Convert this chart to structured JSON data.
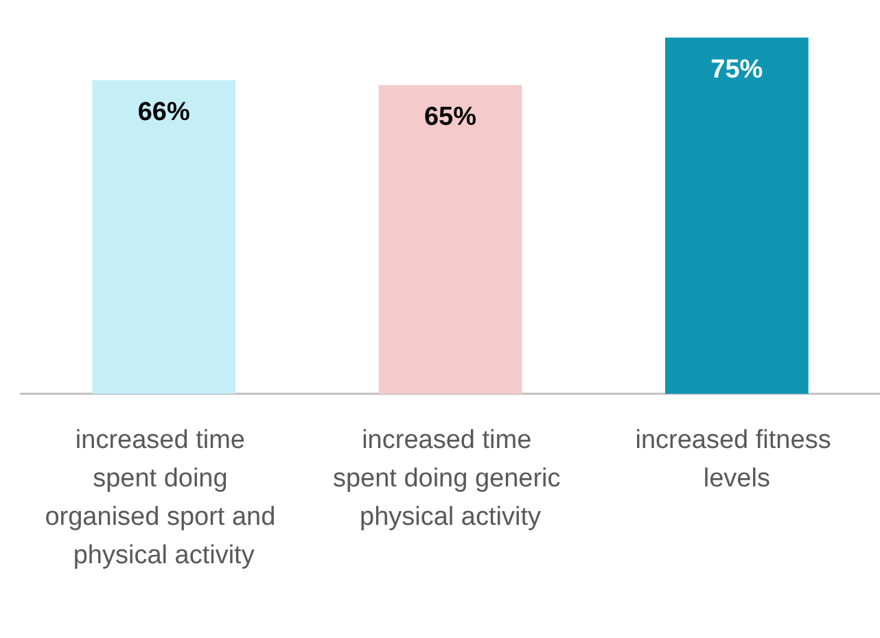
{
  "chart_data": {
    "type": "bar",
    "categories": [
      "increased time spent doing organised sport and physical activity",
      "increased time spent doing generic physical activity",
      "increased fitness levels"
    ],
    "values": [
      66,
      65,
      75
    ],
    "colors": [
      "#c5eef7",
      "#f4caca",
      "#1095b3"
    ],
    "value_labels": [
      "66%",
      "65%",
      "75%"
    ],
    "tick_labels": "x"
  }
}
